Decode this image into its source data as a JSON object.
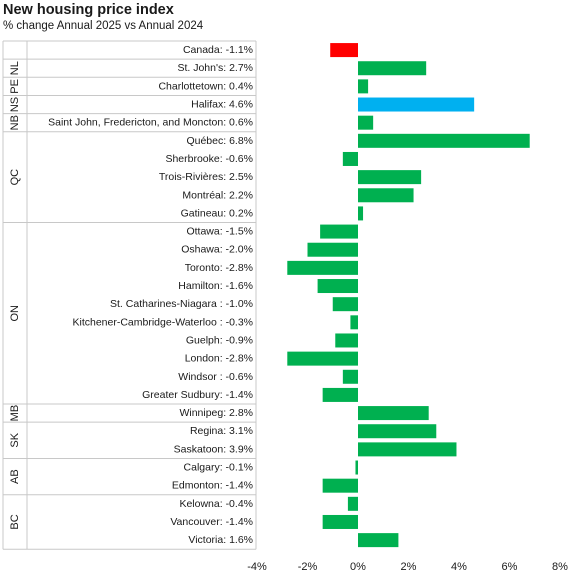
{
  "chart_data": {
    "type": "bar",
    "orientation": "horizontal",
    "title": "New housing price index",
    "subtitle": "% change Annual 2025 vs Annual 2024",
    "xlabel": "",
    "ylabel": "",
    "xlim": [
      -4,
      8
    ],
    "x_ticks": [
      "-4%",
      "-2%",
      "0%",
      "2%",
      "4%",
      "6%",
      "8%"
    ],
    "grid": false,
    "legend": "none",
    "colors": {
      "canada": "#ff0000",
      "highlight": "#00b0f0",
      "default": "#00b050"
    },
    "groups": [
      {
        "label": "",
        "start": 0,
        "end": 0
      },
      {
        "label": "NL",
        "start": 1,
        "end": 1
      },
      {
        "label": "PE",
        "start": 2,
        "end": 2
      },
      {
        "label": "NS",
        "start": 3,
        "end": 3
      },
      {
        "label": "NB",
        "start": 4,
        "end": 4
      },
      {
        "label": "QC",
        "start": 5,
        "end": 9
      },
      {
        "label": "ON",
        "start": 10,
        "end": 19
      },
      {
        "label": "MB",
        "start": 20,
        "end": 20
      },
      {
        "label": "SK",
        "start": 21,
        "end": 22
      },
      {
        "label": "AB",
        "start": 23,
        "end": 24
      },
      {
        "label": "BC",
        "start": 25,
        "end": 27
      }
    ],
    "categories": [
      "Canada: -1.1%",
      "St. John's: 2.7%",
      "Charlottetown: 0.4%",
      "Halifax: 4.6%",
      "Saint John, Fredericton, and Moncton: 0.6%",
      "Québec: 6.8%",
      "Sherbrooke: -0.6%",
      "Trois-Rivières: 2.5%",
      "Montréal: 2.2%",
      "Gatineau: 0.2%",
      "Ottawa: -1.5%",
      "Oshawa: -2.0%",
      "Toronto: -2.8%",
      "Hamilton: -1.6%",
      "St. Catharines-Niagara : -1.0%",
      "Kitchener-Cambridge-Waterloo : -0.3%",
      "Guelph: -0.9%",
      "London: -2.8%",
      "Windsor : -0.6%",
      "Greater Sudbury: -1.4%",
      "Winnipeg: 2.8%",
      "Regina: 3.1%",
      "Saskatoon: 3.9%",
      "Calgary: -0.1%",
      "Edmonton: -1.4%",
      "Kelowna: -0.4%",
      "Vancouver: -1.4%",
      "Victoria: 1.6%"
    ],
    "values": [
      -1.1,
      2.7,
      0.4,
      4.6,
      0.6,
      6.8,
      -0.6,
      2.5,
      2.2,
      0.2,
      -1.5,
      -2.0,
      -2.8,
      -1.6,
      -1.0,
      -0.3,
      -0.9,
      -2.8,
      -0.6,
      -1.4,
      2.8,
      3.1,
      3.9,
      -0.1,
      -1.4,
      -0.4,
      -1.4,
      1.6
    ],
    "bar_color_keys": [
      "canada",
      "default",
      "default",
      "highlight",
      "default",
      "default",
      "default",
      "default",
      "default",
      "default",
      "default",
      "default",
      "default",
      "default",
      "default",
      "default",
      "default",
      "default",
      "default",
      "default",
      "default",
      "default",
      "default",
      "default",
      "default",
      "default",
      "default",
      "default"
    ]
  }
}
